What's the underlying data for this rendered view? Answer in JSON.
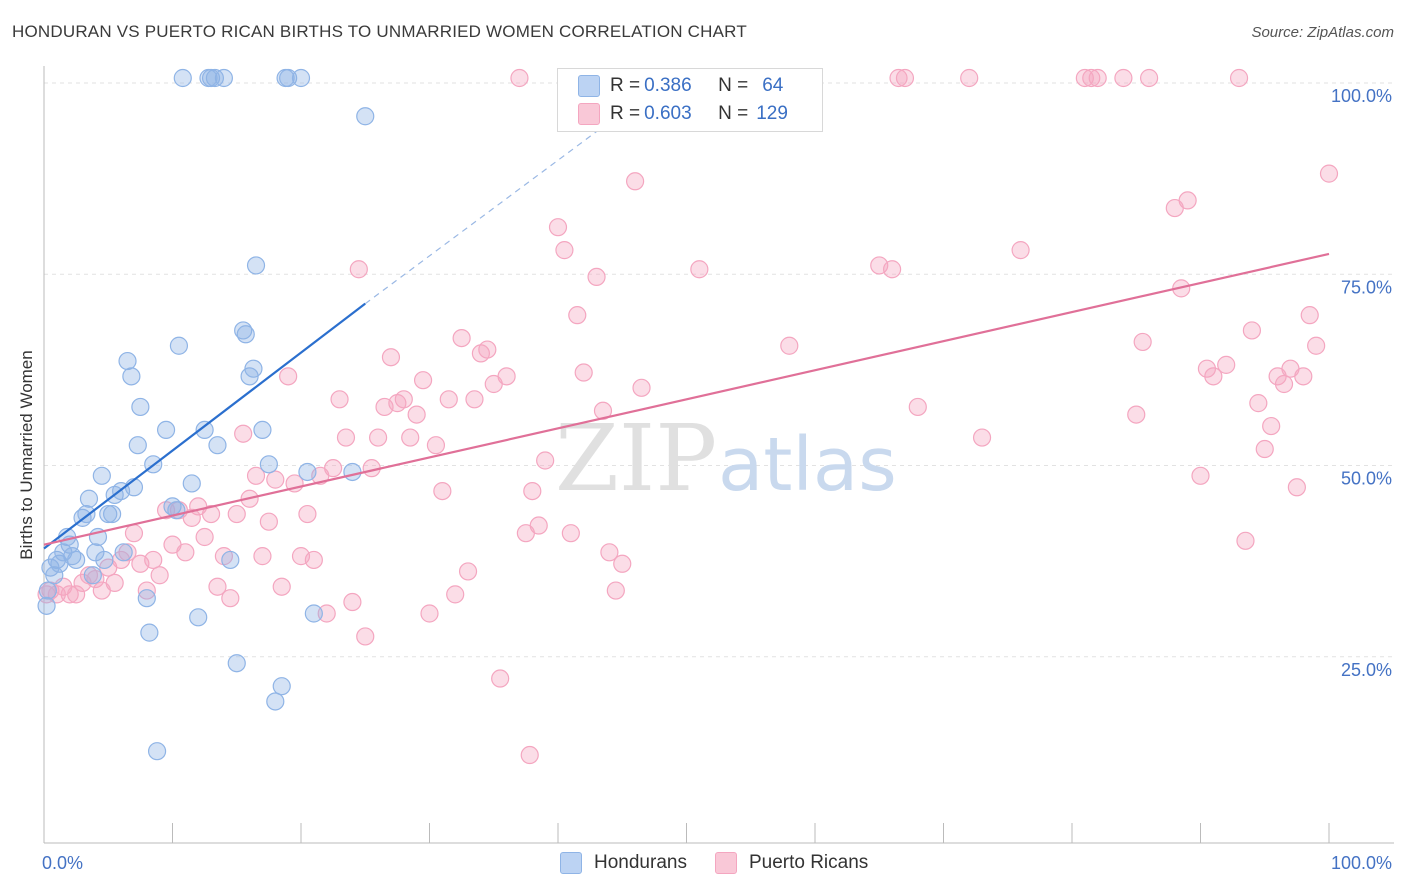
{
  "chart_data": {
    "type": "scatter",
    "title": "HONDURAN VS PUERTO RICAN BIRTHS TO UNMARRIED WOMEN CORRELATION CHART",
    "source": "Source: ZipAtlas.com",
    "watermark": "ZIPatlas",
    "xlabel": "",
    "ylabel": "Births to Unmarried Women",
    "xlim": [
      0,
      100
    ],
    "ylim": [
      0,
      100
    ],
    "x_tick_labels": [
      "0.0%",
      "100.0%"
    ],
    "y_tick_labels": [
      "25.0%",
      "50.0%",
      "75.0%",
      "100.0%"
    ],
    "legend": {
      "rows": [
        {
          "r_label": "R =",
          "r_value": "0.386",
          "n_label": "N =",
          "n_value": "64"
        },
        {
          "r_label": "R =",
          "r_value": "0.603",
          "n_label": "N =",
          "n_value": "129"
        }
      ]
    },
    "series": [
      {
        "name": "Hondurans",
        "color": "#8fb4e6",
        "line_color": "#2b6fce",
        "trend": {
          "x0": 0,
          "y0": 38.5,
          "x1": 25,
          "y1": 70.5,
          "dash_to_x": 43,
          "dash_to_y": 93
        },
        "points": [
          [
            0.3,
            33
          ],
          [
            0.5,
            36
          ],
          [
            0.8,
            35
          ],
          [
            1,
            37
          ],
          [
            1.2,
            36.5
          ],
          [
            1.5,
            38
          ],
          [
            1.8,
            40
          ],
          [
            2,
            39
          ],
          [
            2.2,
            37.5
          ],
          [
            2.5,
            37
          ],
          [
            3,
            42.5
          ],
          [
            3.3,
            43
          ],
          [
            3.5,
            45
          ],
          [
            3.8,
            35
          ],
          [
            4,
            38
          ],
          [
            4.2,
            40
          ],
          [
            4.5,
            48
          ],
          [
            4.7,
            37
          ],
          [
            5,
            43
          ],
          [
            5.3,
            43
          ],
          [
            5.5,
            45.5
          ],
          [
            6,
            46
          ],
          [
            6.2,
            38
          ],
          [
            6.5,
            63
          ],
          [
            6.8,
            61
          ],
          [
            7,
            46.5
          ],
          [
            7.3,
            52
          ],
          [
            7.5,
            57
          ],
          [
            8,
            32
          ],
          [
            8.2,
            27.5
          ],
          [
            8.5,
            49.5
          ],
          [
            8.8,
            12
          ],
          [
            9.5,
            54
          ],
          [
            10,
            44
          ],
          [
            10.3,
            43.5
          ],
          [
            10.5,
            65
          ],
          [
            10.8,
            100
          ],
          [
            11.5,
            47
          ],
          [
            12,
            29.5
          ],
          [
            12.5,
            54
          ],
          [
            13,
            100
          ],
          [
            13.3,
            100
          ],
          [
            13.5,
            52
          ],
          [
            14,
            100
          ],
          [
            14.5,
            37
          ],
          [
            15,
            23.5
          ],
          [
            15.5,
            67
          ],
          [
            15.7,
            66.5
          ],
          [
            16,
            61
          ],
          [
            16.3,
            62
          ],
          [
            16.5,
            75.5
          ],
          [
            17,
            54
          ],
          [
            17.5,
            49.5
          ],
          [
            18,
            18.5
          ],
          [
            18.5,
            20.5
          ],
          [
            18.8,
            100
          ],
          [
            19,
            100
          ],
          [
            20,
            100
          ],
          [
            20.5,
            48.5
          ],
          [
            21,
            30
          ],
          [
            24,
            48.5
          ],
          [
            25,
            95
          ],
          [
            12.8,
            100
          ],
          [
            0.2,
            31
          ]
        ]
      },
      {
        "name": "Puerto Ricans",
        "color": "#f4a6c0",
        "line_color": "#e07098",
        "trend": {
          "x0": 0,
          "y0": 39,
          "x1": 100,
          "y1": 77
        },
        "points": [
          [
            0.2,
            32.5
          ],
          [
            0.5,
            33
          ],
          [
            1,
            32.5
          ],
          [
            1.5,
            33.5
          ],
          [
            2,
            32.5
          ],
          [
            2.5,
            32.5
          ],
          [
            3,
            34
          ],
          [
            3.5,
            35
          ],
          [
            4,
            34.5
          ],
          [
            4.5,
            33
          ],
          [
            5,
            36
          ],
          [
            5.5,
            34
          ],
          [
            6,
            37
          ],
          [
            6.5,
            38
          ],
          [
            7,
            40.5
          ],
          [
            7.5,
            36.5
          ],
          [
            8,
            33
          ],
          [
            8.5,
            37
          ],
          [
            9,
            35
          ],
          [
            9.5,
            43.5
          ],
          [
            10,
            39
          ],
          [
            10.5,
            43.5
          ],
          [
            11,
            38
          ],
          [
            11.5,
            42.5
          ],
          [
            12,
            44
          ],
          [
            12.5,
            40
          ],
          [
            13,
            43
          ],
          [
            13.5,
            33.5
          ],
          [
            14,
            37.5
          ],
          [
            14.5,
            32
          ],
          [
            15,
            43
          ],
          [
            15.5,
            53.5
          ],
          [
            16,
            45
          ],
          [
            16.5,
            48
          ],
          [
            17,
            37.5
          ],
          [
            17.5,
            42
          ],
          [
            18,
            47.5
          ],
          [
            18.5,
            33.5
          ],
          [
            19,
            61
          ],
          [
            19.5,
            47
          ],
          [
            20,
            37.5
          ],
          [
            20.5,
            43
          ],
          [
            21,
            37
          ],
          [
            21.5,
            48
          ],
          [
            22,
            30
          ],
          [
            22.5,
            49
          ],
          [
            23,
            58
          ],
          [
            23.5,
            53
          ],
          [
            24,
            31.5
          ],
          [
            24.5,
            75
          ],
          [
            25,
            27
          ],
          [
            25.5,
            49
          ],
          [
            26,
            53
          ],
          [
            26.5,
            57
          ],
          [
            27,
            63.5
          ],
          [
            27.5,
            57.5
          ],
          [
            28,
            58
          ],
          [
            28.5,
            53
          ],
          [
            29,
            56
          ],
          [
            29.5,
            60.5
          ],
          [
            30,
            30
          ],
          [
            30.5,
            52
          ],
          [
            31,
            46
          ],
          [
            31.5,
            58
          ],
          [
            32,
            32.5
          ],
          [
            32.5,
            66
          ],
          [
            33,
            35.5
          ],
          [
            33.5,
            58
          ],
          [
            34,
            64
          ],
          [
            34.5,
            64.5
          ],
          [
            35,
            60
          ],
          [
            35.5,
            21.5
          ],
          [
            36,
            61
          ],
          [
            37,
            100
          ],
          [
            37.5,
            40.5
          ],
          [
            38,
            46
          ],
          [
            38.5,
            41.5
          ],
          [
            39,
            50
          ],
          [
            40,
            80.5
          ],
          [
            40.5,
            77.5
          ],
          [
            41,
            40.5
          ],
          [
            41.5,
            69
          ],
          [
            42,
            61.5
          ],
          [
            43,
            74
          ],
          [
            43.5,
            56.5
          ],
          [
            44,
            38
          ],
          [
            44.5,
            33
          ],
          [
            45,
            36.5
          ],
          [
            46,
            86.5
          ],
          [
            46.5,
            59.5
          ],
          [
            37.8,
            11.5
          ],
          [
            51,
            75
          ],
          [
            58,
            65
          ],
          [
            65,
            75.5
          ],
          [
            66,
            75
          ],
          [
            66.5,
            100
          ],
          [
            67,
            100
          ],
          [
            68,
            57
          ],
          [
            72,
            100
          ],
          [
            73,
            53
          ],
          [
            76,
            77.5
          ],
          [
            81,
            100
          ],
          [
            81.5,
            100
          ],
          [
            82,
            100
          ],
          [
            84,
            100
          ],
          [
            85,
            56
          ],
          [
            85.5,
            65.5
          ],
          [
            86,
            100
          ],
          [
            88,
            83
          ],
          [
            88.5,
            72.5
          ],
          [
            89,
            84
          ],
          [
            90,
            48
          ],
          [
            90.5,
            62
          ],
          [
            91,
            61
          ],
          [
            92,
            62.5
          ],
          [
            93,
            100
          ],
          [
            93.5,
            39.5
          ],
          [
            94,
            67
          ],
          [
            94.5,
            57.5
          ],
          [
            95,
            51.5
          ],
          [
            95.5,
            54.5
          ],
          [
            96,
            61
          ],
          [
            96.5,
            60
          ],
          [
            97,
            62
          ],
          [
            97.5,
            46.5
          ],
          [
            98,
            61
          ],
          [
            98.5,
            69
          ],
          [
            99,
            65
          ],
          [
            100,
            87.5
          ]
        ]
      }
    ]
  }
}
